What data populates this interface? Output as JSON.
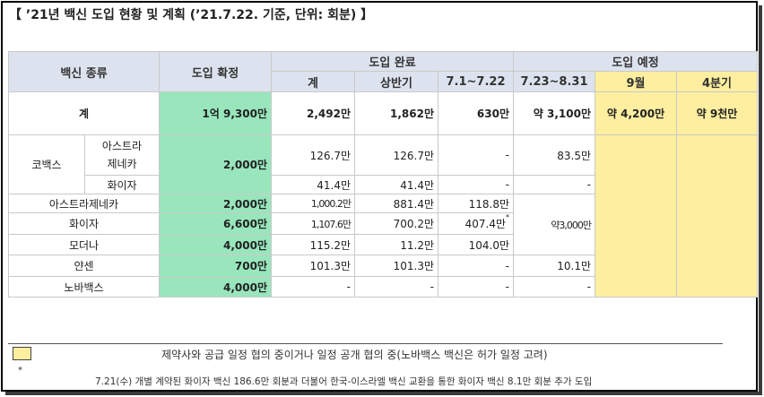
{
  "title": "【 ’21년 백신 도입 현황 및 계획 (’21.7.22. 기준, 단위: 회분) 】",
  "headers": {
    "vaccine_type": "백신 종류",
    "confirmed": "도입 확정",
    "completed": "도입 완료",
    "planned": "도입 예정",
    "total": "계",
    "first_half": "상반기",
    "p_0701_0722": "7.1~7.22",
    "p_0723_0831": "7.23~8.31",
    "september": "9월",
    "q4": "4분기"
  },
  "total_row": {
    "label": "계",
    "confirmed": "1억 9,300만",
    "completed_total": "2,492만",
    "first_half": "1,862만",
    "jul": "630만",
    "aug": "약 3,100만",
    "sep": "약 4,200만",
    "q4": "약 9천만"
  },
  "covax": {
    "label": "코백스",
    "confirmed": "2,000만",
    "az_label_1": "아스트라",
    "az_label_2": "제네카",
    "pfizer_label": "화이자",
    "az": {
      "total": "126.7만",
      "first_half": "126.7만",
      "jul": "-",
      "aug": "83.5만"
    },
    "pfizer": {
      "total": "41.4만",
      "first_half": "41.4만",
      "jul": "-",
      "aug": "-"
    }
  },
  "rows": [
    {
      "label": "아스트라제네카",
      "confirmed": "2,000만",
      "total": "1,000.2만",
      "first_half": "881.4만",
      "jul": "118.8만"
    },
    {
      "label": "화이자",
      "confirmed": "6,600만",
      "total": "1,107.6만",
      "first_half": "700.2만",
      "jul": "407.4만",
      "jul_mark": "*"
    },
    {
      "label": "모더나",
      "confirmed": "4,000만",
      "total": "115.2만",
      "first_half": "11.2만",
      "jul": "104.0만"
    },
    {
      "label": "얀센",
      "confirmed": "700만",
      "total": "101.3만",
      "first_half": "101.3만",
      "jul": "-",
      "aug": "10.1만"
    },
    {
      "label": "노바백스",
      "confirmed": "4,000만",
      "total": "-",
      "first_half": "-",
      "jul": "-",
      "aug": "-"
    }
  ],
  "merged_aug": "약3,000만",
  "legend": {
    "text": "제약사와 공급 일정 협의 중이거나 일정 공개 협의 중(노바백스 백신은 허가 일정 고려)"
  },
  "footnote": {
    "mark": "*",
    "text": "7.21(수) 개별 계약된 화이자 백신 186.6만 회분과 더불어 한국-이스라엘 백신 교환을 통한 화이자 백신 8.1만 회분 추가 도입"
  },
  "colors": {
    "green": "#99e6bd",
    "yellow": "#fdeea0",
    "header": "#dde3ee"
  }
}
